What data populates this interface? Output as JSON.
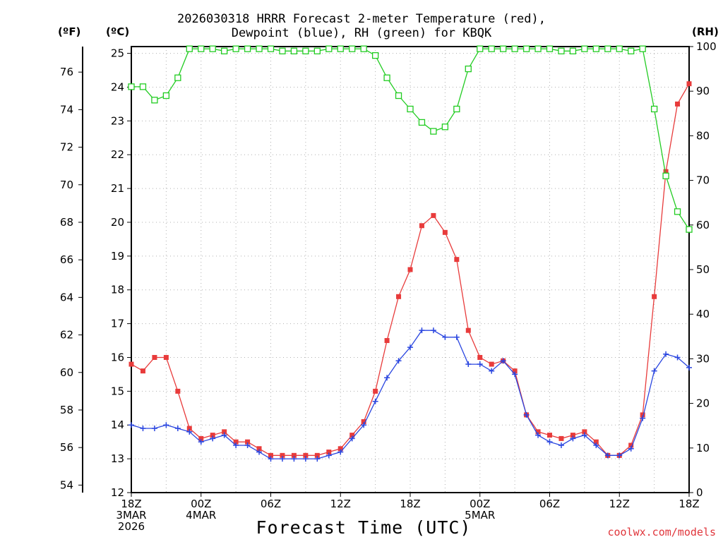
{
  "chart_data": {
    "type": "line",
    "title_line1": "2026030318 HRRR Forecast 2-meter Temperature (red),",
    "title_line2": "Dewpoint (blue), RH (green) for KBQK",
    "xlabel": "Forecast Time (UTC)",
    "credit": "coolwx.com/models",
    "unit_left_f": "(ºF)",
    "unit_left_c": "(ºC)",
    "unit_right": "(RH)",
    "x_range_hours": [
      0,
      48
    ],
    "celsius_range": [
      12,
      25.2
    ],
    "rh_range": [
      0,
      100
    ],
    "celsius_ticks": [
      12,
      13,
      14,
      15,
      16,
      17,
      18,
      19,
      20,
      21,
      22,
      23,
      24,
      25
    ],
    "fahrenheit_ticks": [
      54,
      56,
      58,
      60,
      62,
      64,
      66,
      68,
      70,
      72,
      74,
      76
    ],
    "rh_ticks": [
      0,
      10,
      20,
      30,
      40,
      50,
      60,
      70,
      80,
      90,
      100
    ],
    "x_ticks": [
      {
        "hour": 0,
        "lines": [
          "18Z",
          "3MAR",
          "2026"
        ]
      },
      {
        "hour": 6,
        "lines": [
          "00Z",
          "4MAR"
        ]
      },
      {
        "hour": 12,
        "lines": [
          "06Z"
        ]
      },
      {
        "hour": 18,
        "lines": [
          "12Z"
        ]
      },
      {
        "hour": 24,
        "lines": [
          "18Z"
        ]
      },
      {
        "hour": 30,
        "lines": [
          "00Z",
          "5MAR"
        ]
      },
      {
        "hour": 36,
        "lines": [
          "06Z"
        ]
      },
      {
        "hour": 42,
        "lines": [
          "12Z"
        ]
      },
      {
        "hour": 48,
        "lines": [
          "18Z"
        ]
      }
    ],
    "colors": {
      "temperature": "#e83b3b",
      "dewpoint": "#2a46e0",
      "rh": "#22cc22",
      "grid": "#b0b0b0",
      "credit": "#e0353b"
    },
    "series": [
      {
        "name": "Temperature",
        "unit": "C",
        "values": [
          15.8,
          15.6,
          16.0,
          16.0,
          15.0,
          13.9,
          13.6,
          13.7,
          13.8,
          13.5,
          13.5,
          13.3,
          13.1,
          13.1,
          13.1,
          13.1,
          13.1,
          13.2,
          13.3,
          13.7,
          14.1,
          15.0,
          16.5,
          17.8,
          18.6,
          19.9,
          20.2,
          19.7,
          18.9,
          16.8,
          16.0,
          15.8,
          15.9,
          15.6,
          14.3,
          13.8,
          13.7,
          13.6,
          13.7,
          13.8,
          13.5,
          13.1,
          13.1,
          13.4,
          14.3,
          17.8,
          21.5,
          23.5,
          24.1
        ]
      },
      {
        "name": "Dewpoint",
        "unit": "C",
        "values": [
          14.0,
          13.9,
          13.9,
          14.0,
          13.9,
          13.8,
          13.5,
          13.6,
          13.7,
          13.4,
          13.4,
          13.2,
          13.0,
          13.0,
          13.0,
          13.0,
          13.0,
          13.1,
          13.2,
          13.6,
          14.0,
          14.7,
          15.4,
          15.9,
          16.3,
          16.8,
          16.8,
          16.6,
          16.6,
          15.8,
          15.8,
          15.6,
          15.9,
          15.5,
          14.3,
          13.7,
          13.5,
          13.4,
          13.6,
          13.7,
          13.4,
          13.1,
          13.1,
          13.3,
          14.2,
          15.6,
          16.1,
          16.0,
          15.7
        ]
      },
      {
        "name": "RH",
        "unit": "%",
        "values": [
          91,
          91,
          88,
          89,
          93,
          99.5,
          99.5,
          99.5,
          99,
          99.5,
          99.5,
          99.5,
          99.5,
          99,
          99,
          99,
          99,
          99.5,
          99.5,
          99.5,
          99.5,
          98,
          93,
          89,
          86,
          83,
          81,
          82,
          86,
          95,
          99.5,
          99.5,
          99.5,
          99.5,
          99.5,
          99.5,
          99.5,
          99,
          99,
          99.5,
          99.5,
          99.5,
          99.5,
          99,
          99.5,
          86,
          71,
          63,
          59
        ]
      }
    ]
  }
}
